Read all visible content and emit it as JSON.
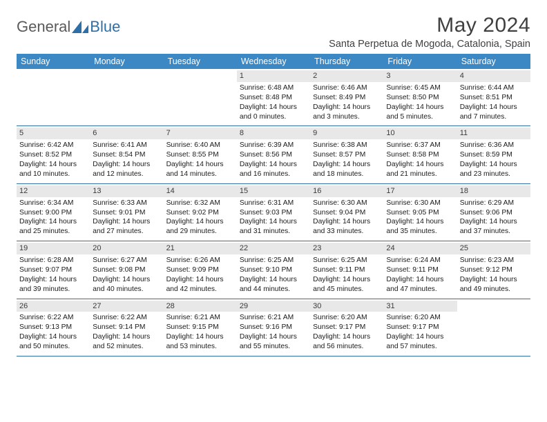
{
  "logo": {
    "text1": "General",
    "text2": "Blue"
  },
  "title": "May 2024",
  "location": "Santa Perpetua de Mogoda, Catalonia, Spain",
  "colors": {
    "header_bg": "#3b88c5",
    "border": "#2f6fa8",
    "daynum_bg": "#e8e8e8",
    "text": "#1a1a1a",
    "logo_gray": "#5a5a5a",
    "logo_blue": "#2f6fa8"
  },
  "day_headers": [
    "Sunday",
    "Monday",
    "Tuesday",
    "Wednesday",
    "Thursday",
    "Friday",
    "Saturday"
  ],
  "weeks": [
    [
      {
        "empty": true
      },
      {
        "empty": true
      },
      {
        "empty": true
      },
      {
        "num": "1",
        "sunrise": "6:48 AM",
        "sunset": "8:48 PM",
        "daylight": "14 hours and 0 minutes."
      },
      {
        "num": "2",
        "sunrise": "6:46 AM",
        "sunset": "8:49 PM",
        "daylight": "14 hours and 3 minutes."
      },
      {
        "num": "3",
        "sunrise": "6:45 AM",
        "sunset": "8:50 PM",
        "daylight": "14 hours and 5 minutes."
      },
      {
        "num": "4",
        "sunrise": "6:44 AM",
        "sunset": "8:51 PM",
        "daylight": "14 hours and 7 minutes."
      }
    ],
    [
      {
        "num": "5",
        "sunrise": "6:42 AM",
        "sunset": "8:52 PM",
        "daylight": "14 hours and 10 minutes."
      },
      {
        "num": "6",
        "sunrise": "6:41 AM",
        "sunset": "8:54 PM",
        "daylight": "14 hours and 12 minutes."
      },
      {
        "num": "7",
        "sunrise": "6:40 AM",
        "sunset": "8:55 PM",
        "daylight": "14 hours and 14 minutes."
      },
      {
        "num": "8",
        "sunrise": "6:39 AM",
        "sunset": "8:56 PM",
        "daylight": "14 hours and 16 minutes."
      },
      {
        "num": "9",
        "sunrise": "6:38 AM",
        "sunset": "8:57 PM",
        "daylight": "14 hours and 18 minutes."
      },
      {
        "num": "10",
        "sunrise": "6:37 AM",
        "sunset": "8:58 PM",
        "daylight": "14 hours and 21 minutes."
      },
      {
        "num": "11",
        "sunrise": "6:36 AM",
        "sunset": "8:59 PM",
        "daylight": "14 hours and 23 minutes."
      }
    ],
    [
      {
        "num": "12",
        "sunrise": "6:34 AM",
        "sunset": "9:00 PM",
        "daylight": "14 hours and 25 minutes."
      },
      {
        "num": "13",
        "sunrise": "6:33 AM",
        "sunset": "9:01 PM",
        "daylight": "14 hours and 27 minutes."
      },
      {
        "num": "14",
        "sunrise": "6:32 AM",
        "sunset": "9:02 PM",
        "daylight": "14 hours and 29 minutes."
      },
      {
        "num": "15",
        "sunrise": "6:31 AM",
        "sunset": "9:03 PM",
        "daylight": "14 hours and 31 minutes."
      },
      {
        "num": "16",
        "sunrise": "6:30 AM",
        "sunset": "9:04 PM",
        "daylight": "14 hours and 33 minutes."
      },
      {
        "num": "17",
        "sunrise": "6:30 AM",
        "sunset": "9:05 PM",
        "daylight": "14 hours and 35 minutes."
      },
      {
        "num": "18",
        "sunrise": "6:29 AM",
        "sunset": "9:06 PM",
        "daylight": "14 hours and 37 minutes."
      }
    ],
    [
      {
        "num": "19",
        "sunrise": "6:28 AM",
        "sunset": "9:07 PM",
        "daylight": "14 hours and 39 minutes."
      },
      {
        "num": "20",
        "sunrise": "6:27 AM",
        "sunset": "9:08 PM",
        "daylight": "14 hours and 40 minutes."
      },
      {
        "num": "21",
        "sunrise": "6:26 AM",
        "sunset": "9:09 PM",
        "daylight": "14 hours and 42 minutes."
      },
      {
        "num": "22",
        "sunrise": "6:25 AM",
        "sunset": "9:10 PM",
        "daylight": "14 hours and 44 minutes."
      },
      {
        "num": "23",
        "sunrise": "6:25 AM",
        "sunset": "9:11 PM",
        "daylight": "14 hours and 45 minutes."
      },
      {
        "num": "24",
        "sunrise": "6:24 AM",
        "sunset": "9:11 PM",
        "daylight": "14 hours and 47 minutes."
      },
      {
        "num": "25",
        "sunrise": "6:23 AM",
        "sunset": "9:12 PM",
        "daylight": "14 hours and 49 minutes."
      }
    ],
    [
      {
        "num": "26",
        "sunrise": "6:22 AM",
        "sunset": "9:13 PM",
        "daylight": "14 hours and 50 minutes."
      },
      {
        "num": "27",
        "sunrise": "6:22 AM",
        "sunset": "9:14 PM",
        "daylight": "14 hours and 52 minutes."
      },
      {
        "num": "28",
        "sunrise": "6:21 AM",
        "sunset": "9:15 PM",
        "daylight": "14 hours and 53 minutes."
      },
      {
        "num": "29",
        "sunrise": "6:21 AM",
        "sunset": "9:16 PM",
        "daylight": "14 hours and 55 minutes."
      },
      {
        "num": "30",
        "sunrise": "6:20 AM",
        "sunset": "9:17 PM",
        "daylight": "14 hours and 56 minutes."
      },
      {
        "num": "31",
        "sunrise": "6:20 AM",
        "sunset": "9:17 PM",
        "daylight": "14 hours and 57 minutes."
      },
      {
        "empty": true
      }
    ]
  ],
  "labels": {
    "sunrise": "Sunrise:",
    "sunset": "Sunset:",
    "daylight": "Daylight:"
  }
}
